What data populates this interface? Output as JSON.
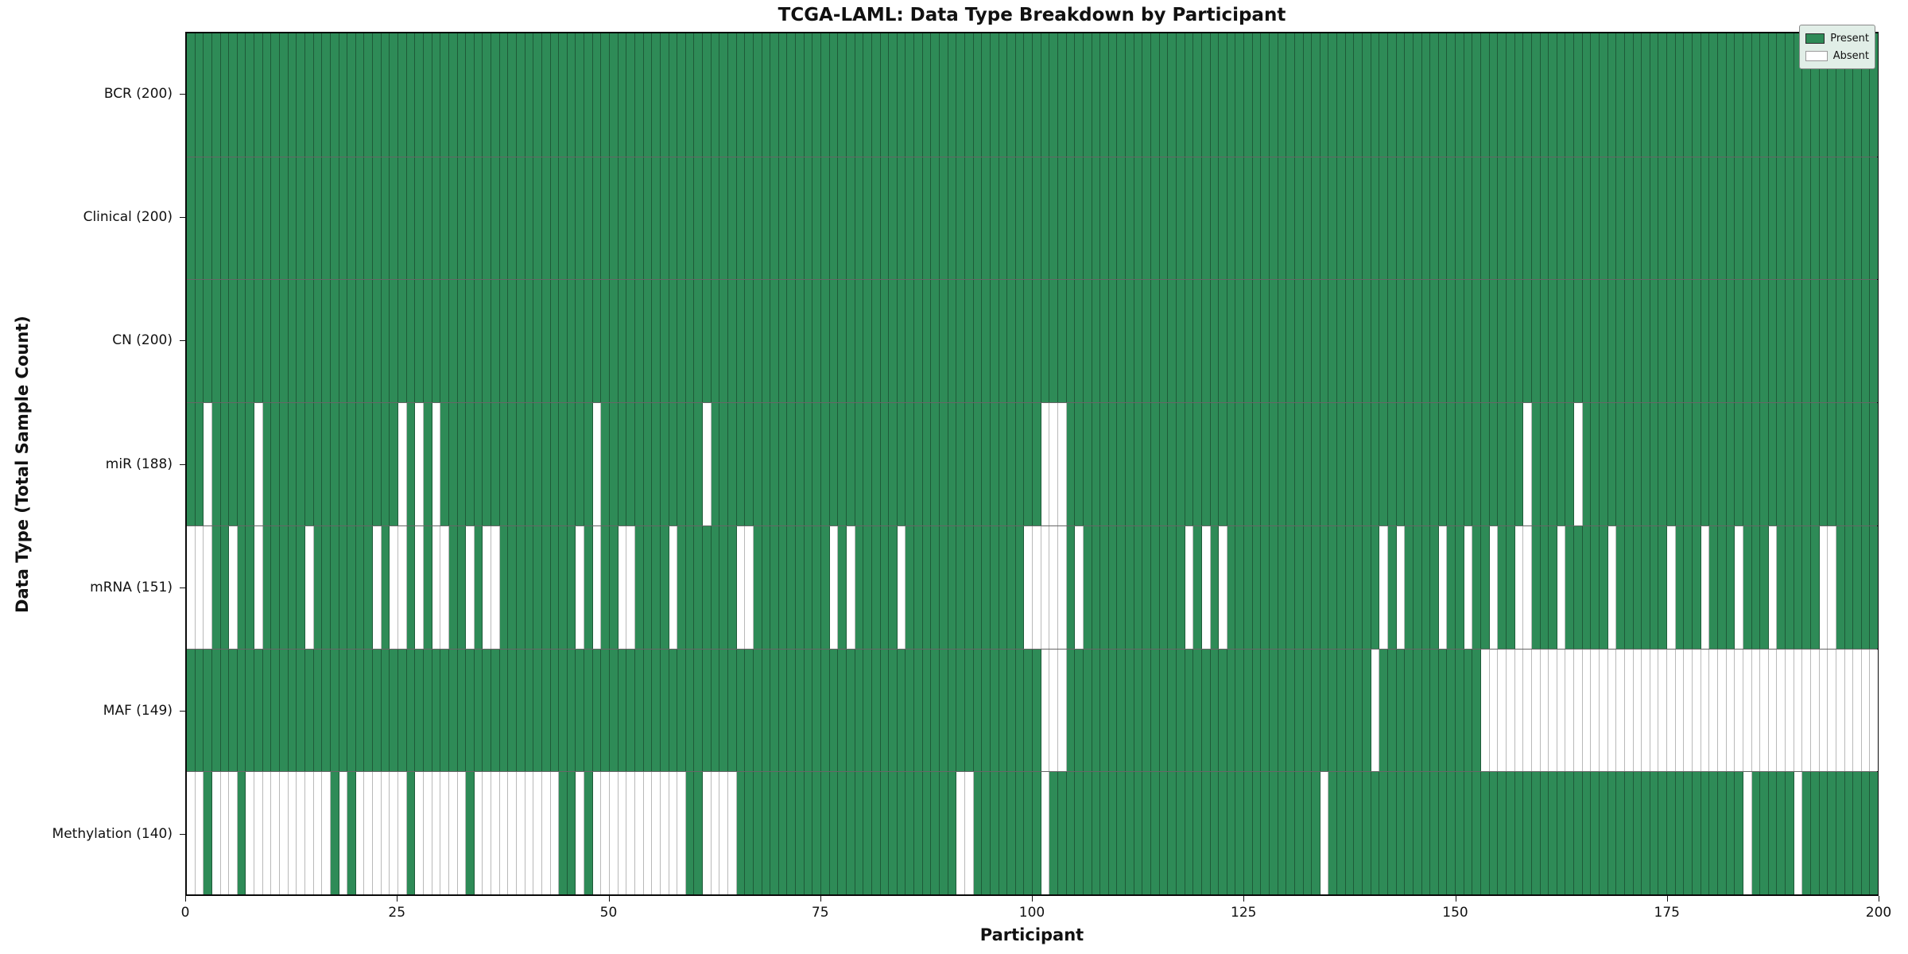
{
  "title": "TCGA-LAML: Data Type Breakdown by Participant",
  "xlabel": "Participant",
  "ylabel": "Data Type (Total Sample Count)",
  "legend": {
    "present_label": "Present",
    "absent_label": "Absent"
  },
  "colors": {
    "present": "#2e8b57",
    "absent": "#ffffff",
    "plot_border": "#0a0a0a",
    "legend_bg": "#e1eee7"
  },
  "x_ticks": [
    0,
    25,
    50,
    75,
    100,
    125,
    150,
    175,
    200
  ],
  "chart_data": {
    "type": "heatmap",
    "x_axis": "participant index",
    "x_range": [
      0,
      200
    ],
    "n_participants": 200,
    "legend_entries": [
      "Present",
      "Absent"
    ],
    "rows": [
      {
        "label": "BCR (200)",
        "data_type": "BCR",
        "total": 200,
        "absent_participants": []
      },
      {
        "label": "Clinical (200)",
        "data_type": "Clinical",
        "total": 200,
        "absent_participants": []
      },
      {
        "label": "CN (200)",
        "data_type": "CN",
        "total": 200,
        "absent_participants": []
      },
      {
        "label": "miR (188)",
        "data_type": "miR",
        "total": 188,
        "absent_participants": [
          2,
          8,
          25,
          27,
          29,
          48,
          61,
          101,
          102,
          103,
          158,
          164
        ]
      },
      {
        "label": "mRNA (151)",
        "data_type": "mRNA",
        "total": 151,
        "absent_participants": [
          0,
          1,
          2,
          5,
          8,
          14,
          22,
          24,
          25,
          27,
          29,
          30,
          33,
          35,
          36,
          46,
          48,
          51,
          52,
          57,
          65,
          66,
          76,
          78,
          84,
          99,
          100,
          101,
          102,
          103,
          105,
          118,
          120,
          122,
          141,
          143,
          148,
          151,
          154,
          157,
          158,
          162,
          168,
          175,
          179,
          183,
          187,
          193,
          194
        ]
      },
      {
        "label": "MAF (149)",
        "data_type": "MAF",
        "total": 149,
        "absent_participants": [
          101,
          102,
          103,
          140,
          153,
          154,
          155,
          156,
          157,
          158,
          159,
          160,
          161,
          162,
          163,
          164,
          165,
          166,
          167,
          168,
          169,
          170,
          171,
          172,
          173,
          174,
          175,
          176,
          177,
          178,
          179,
          180,
          181,
          182,
          183,
          184,
          185,
          186,
          187,
          188,
          189,
          190,
          191,
          192,
          193,
          194,
          195,
          196,
          197,
          198,
          199
        ]
      },
      {
        "label": "Methylation (140)",
        "data_type": "Methylation",
        "total": 140,
        "absent_participants": [
          0,
          1,
          3,
          4,
          5,
          7,
          8,
          9,
          10,
          11,
          12,
          13,
          14,
          15,
          16,
          18,
          20,
          21,
          22,
          23,
          24,
          25,
          27,
          28,
          29,
          30,
          31,
          32,
          34,
          35,
          36,
          37,
          38,
          39,
          40,
          41,
          42,
          43,
          46,
          48,
          49,
          50,
          51,
          52,
          53,
          54,
          55,
          56,
          57,
          58,
          61,
          62,
          63,
          64,
          91,
          92,
          101,
          134,
          184,
          190
        ]
      }
    ]
  }
}
